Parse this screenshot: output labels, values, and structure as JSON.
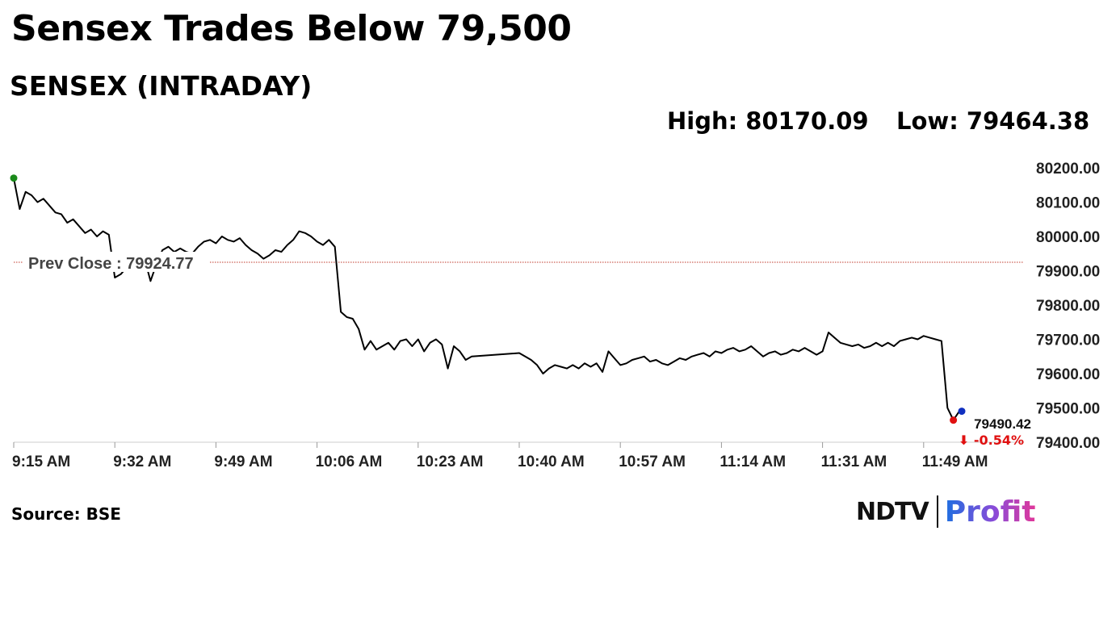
{
  "header": {
    "title": "Sensex Trades Below 79,500",
    "subtitle": "SENSEX (INTRADAY)",
    "high_text": "High: 80170.09",
    "low_text": "Low: 79464.38"
  },
  "footer": {
    "source": "Source: BSE",
    "logo_ndtv": "NDTV",
    "logo_profit": "Profit"
  },
  "colors": {
    "line": "#000000",
    "prev_close_line": "#c0392b",
    "start_marker": "#1a8a1a",
    "end_marker": "#e01010",
    "change_text": "#e01010",
    "live_marker": "#1030c0",
    "tick_text": "#222222",
    "axis": "#cccccc"
  },
  "chart_data": {
    "type": "line",
    "title": "SENSEX (INTRADAY)",
    "xlabel": "",
    "ylabel": "",
    "ylim": [
      79400,
      80200
    ],
    "y_ticks": [
      "80200.00",
      "80100.00",
      "80000.00",
      "79900.00",
      "79800.00",
      "79700.00",
      "79600.00",
      "79500.00",
      "79400.00"
    ],
    "x_ticks": [
      "9:15 AM",
      "9:32 AM",
      "9:49 AM",
      "10:06 AM",
      "10:23 AM",
      "10:40 AM",
      "10:57 AM",
      "11:14 AM",
      "11:31 AM",
      "11:49 AM"
    ],
    "grid": false,
    "prev_close": 79924.77,
    "prev_close_label": "Prev Close : 79924.77",
    "high": 80170.09,
    "low": 79464.38,
    "last_value": 79490.42,
    "last_label": "79490.42",
    "change_label": "⬇ -0.54%",
    "series": [
      {
        "points": [
          [
            "9:15 AM",
            80170.09
          ],
          [
            "9:16 AM",
            80080
          ],
          [
            "9:17 AM",
            80130
          ],
          [
            "9:18 AM",
            80120
          ],
          [
            "9:19 AM",
            80100
          ],
          [
            "9:20 AM",
            80110
          ],
          [
            "9:21 AM",
            80090
          ],
          [
            "9:22 AM",
            80070
          ],
          [
            "9:23 AM",
            80065
          ],
          [
            "9:24 AM",
            80040
          ],
          [
            "9:25 AM",
            80050
          ],
          [
            "9:26 AM",
            80030
          ],
          [
            "9:27 AM",
            80010
          ],
          [
            "9:28 AM",
            80020
          ],
          [
            "9:29 AM",
            80000
          ],
          [
            "9:30 AM",
            80015
          ],
          [
            "9:31 AM",
            80005
          ],
          [
            "9:32 AM",
            79880
          ],
          [
            "9:33 AM",
            79890
          ],
          [
            "9:34 AM",
            79910
          ],
          [
            "9:35 AM",
            79930
          ],
          [
            "9:36 AM",
            79915
          ],
          [
            "9:37 AM",
            79935
          ],
          [
            "9:38 AM",
            79870
          ],
          [
            "9:39 AM",
            79920
          ],
          [
            "9:40 AM",
            79960
          ],
          [
            "9:41 AM",
            79970
          ],
          [
            "9:42 AM",
            79955
          ],
          [
            "9:43 AM",
            79965
          ],
          [
            "9:44 AM",
            79955
          ],
          [
            "9:45 AM",
            79950
          ],
          [
            "9:46 AM",
            79970
          ],
          [
            "9:47 AM",
            79985
          ],
          [
            "9:48 AM",
            79990
          ],
          [
            "9:49 AM",
            79980
          ],
          [
            "9:50 AM",
            80000
          ],
          [
            "9:51 AM",
            79990
          ],
          [
            "9:52 AM",
            79985
          ],
          [
            "9:53 AM",
            79995
          ],
          [
            "9:54 AM",
            79975
          ],
          [
            "9:55 AM",
            79960
          ],
          [
            "9:56 AM",
            79950
          ],
          [
            "9:57 AM",
            79935
          ],
          [
            "9:58 AM",
            79945
          ],
          [
            "9:59 AM",
            79960
          ],
          [
            "10:00 AM",
            79955
          ],
          [
            "10:01 AM",
            79975
          ],
          [
            "10:02 AM",
            79990
          ],
          [
            "10:03 AM",
            80015
          ],
          [
            "10:04 AM",
            80010
          ],
          [
            "10:05 AM",
            80000
          ],
          [
            "10:06 AM",
            79985
          ],
          [
            "10:07 AM",
            79975
          ],
          [
            "10:08 AM",
            79990
          ],
          [
            "10:09 AM",
            79970
          ],
          [
            "10:10 AM",
            79780
          ],
          [
            "10:11 AM",
            79765
          ],
          [
            "10:12 AM",
            79760
          ],
          [
            "10:13 AM",
            79730
          ],
          [
            "10:14 AM",
            79670
          ],
          [
            "10:15 AM",
            79695
          ],
          [
            "10:16 AM",
            79670
          ],
          [
            "10:17 AM",
            79680
          ],
          [
            "10:18 AM",
            79690
          ],
          [
            "10:19 AM",
            79670
          ],
          [
            "10:20 AM",
            79695
          ],
          [
            "10:21 AM",
            79700
          ],
          [
            "10:22 AM",
            79680
          ],
          [
            "10:23 AM",
            79700
          ],
          [
            "10:24 AM",
            79665
          ],
          [
            "10:25 AM",
            79690
          ],
          [
            "10:26 AM",
            79700
          ],
          [
            "10:27 AM",
            79685
          ],
          [
            "10:28 AM",
            79615
          ],
          [
            "10:29 AM",
            79680
          ],
          [
            "10:30 AM",
            79665
          ],
          [
            "10:31 AM",
            79640
          ],
          [
            "10:32 AM",
            79650
          ],
          [
            "10:40 AM",
            79660
          ],
          [
            "10:41 AM",
            79650
          ],
          [
            "10:42 AM",
            79640
          ],
          [
            "10:43 AM",
            79625
          ],
          [
            "10:44 AM",
            79600
          ],
          [
            "10:45 AM",
            79615
          ],
          [
            "10:46 AM",
            79625
          ],
          [
            "10:47 AM",
            79620
          ],
          [
            "10:48 AM",
            79615
          ],
          [
            "10:49 AM",
            79625
          ],
          [
            "10:50 AM",
            79615
          ],
          [
            "10:51 AM",
            79630
          ],
          [
            "10:52 AM",
            79620
          ],
          [
            "10:53 AM",
            79630
          ],
          [
            "10:54 AM",
            79605
          ],
          [
            "10:55 AM",
            79665
          ],
          [
            "10:56 AM",
            79645
          ],
          [
            "10:57 AM",
            79625
          ],
          [
            "10:58 AM",
            79630
          ],
          [
            "10:59 AM",
            79640
          ],
          [
            "11:00 AM",
            79645
          ],
          [
            "11:01 AM",
            79650
          ],
          [
            "11:02 AM",
            79635
          ],
          [
            "11:03 AM",
            79640
          ],
          [
            "11:04 AM",
            79630
          ],
          [
            "11:05 AM",
            79625
          ],
          [
            "11:06 AM",
            79635
          ],
          [
            "11:07 AM",
            79645
          ],
          [
            "11:08 AM",
            79640
          ],
          [
            "11:09 AM",
            79650
          ],
          [
            "11:10 AM",
            79655
          ],
          [
            "11:11 AM",
            79660
          ],
          [
            "11:12 AM",
            79650
          ],
          [
            "11:13 AM",
            79665
          ],
          [
            "11:14 AM",
            79660
          ],
          [
            "11:15 AM",
            79670
          ],
          [
            "11:16 AM",
            79675
          ],
          [
            "11:17 AM",
            79665
          ],
          [
            "11:18 AM",
            79670
          ],
          [
            "11:19 AM",
            79680
          ],
          [
            "11:20 AM",
            79665
          ],
          [
            "11:21 AM",
            79650
          ],
          [
            "11:22 AM",
            79660
          ],
          [
            "11:23 AM",
            79665
          ],
          [
            "11:24 AM",
            79655
          ],
          [
            "11:25 AM",
            79660
          ],
          [
            "11:26 AM",
            79670
          ],
          [
            "11:27 AM",
            79665
          ],
          [
            "11:28 AM",
            79675
          ],
          [
            "11:29 AM",
            79665
          ],
          [
            "11:30 AM",
            79655
          ],
          [
            "11:31 AM",
            79665
          ],
          [
            "11:32 AM",
            79720
          ],
          [
            "11:33 AM",
            79705
          ],
          [
            "11:34 AM",
            79690
          ],
          [
            "11:35 AM",
            79685
          ],
          [
            "11:36 AM",
            79680
          ],
          [
            "11:37 AM",
            79685
          ],
          [
            "11:38 AM",
            79675
          ],
          [
            "11:39 AM",
            79680
          ],
          [
            "11:40 AM",
            79690
          ],
          [
            "11:41 AM",
            79680
          ],
          [
            "11:42 AM",
            79690
          ],
          [
            "11:43 AM",
            79680
          ],
          [
            "11:44 AM",
            79695
          ],
          [
            "11:45 AM",
            79700
          ],
          [
            "11:46 AM",
            79705
          ],
          [
            "11:47 AM",
            79700
          ],
          [
            "11:48 AM",
            79710
          ],
          [
            "11:49 AM",
            79705
          ],
          [
            "11:50 AM",
            79700
          ],
          [
            "11:51 AM",
            79695
          ],
          [
            "11:52 AM",
            79500
          ],
          [
            "11:53 AM",
            79464.38
          ],
          [
            "11:54 AM",
            79490.42
          ]
        ]
      }
    ]
  }
}
